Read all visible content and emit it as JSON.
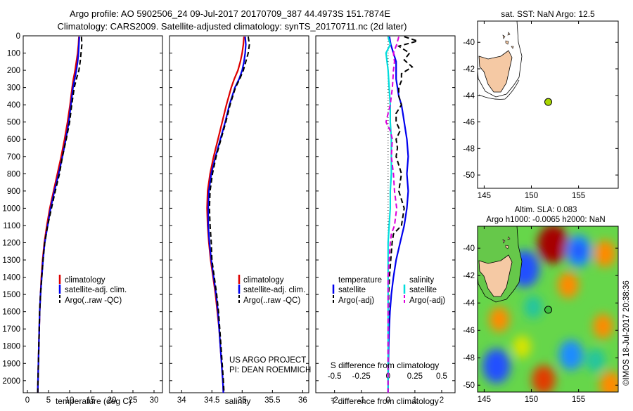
{
  "figure": {
    "title_line1": "Argo profile: AO 5902506_24 09-Jul-2017 20170709_387 44.4973S 151.7874E",
    "title_line2": "Climatology: CARS2009. Satellite-adjusted climatology: synTS_20170711.nc (2d later)",
    "timestamp": "©IMOS 18-Jul-2017 20:38:36",
    "project_line1": "US ARGO PROJECT",
    "project_line2": "PI: DEAN ROEMMICH"
  },
  "colors": {
    "climatology": "#dd0000",
    "satellite": "#0000ee",
    "argo": "#000000",
    "satellite_t": "#0000ee",
    "satellite_s": "#00dddd",
    "argo_t": "#000000",
    "argo_s": "#dd00dd",
    "land": "#f5c9a4",
    "float_marker": "#a8d600"
  },
  "chart_data": [
    {
      "type": "line",
      "id": "temperature",
      "xlabel": "temperature (deg C)",
      "ylabel": "",
      "xlim": [
        -1,
        32
      ],
      "ylim": [
        2070,
        0
      ],
      "xticks": [
        0,
        5,
        10,
        15,
        20,
        25,
        30
      ],
      "yticks": [
        0,
        100,
        200,
        300,
        400,
        500,
        600,
        700,
        800,
        900,
        1000,
        1100,
        1200,
        1300,
        1400,
        1500,
        1600,
        1700,
        1800,
        1900,
        2000
      ],
      "legend": [
        "climatology",
        "satellite-adj. clim.",
        "Argo(..raw -QC)"
      ],
      "series": [
        {
          "name": "climatology",
          "style": "solid",
          "depth": [
            5,
            50,
            100,
            150,
            200,
            250,
            300,
            400,
            500,
            600,
            700,
            800,
            900,
            1000,
            1100,
            1200,
            1300,
            1400,
            1500,
            1600,
            1700,
            1800,
            1900,
            2000,
            2070
          ],
          "values": [
            12.2,
            12.1,
            11.9,
            11.6,
            11.3,
            10.9,
            10.6,
            10.1,
            9.5,
            8.8,
            8.0,
            7.1,
            6.2,
            5.3,
            4.6,
            4.0,
            3.6,
            3.3,
            3.1,
            2.9,
            2.8,
            2.7,
            2.6,
            2.5,
            2.45
          ]
        },
        {
          "name": "satellite-adj. clim.",
          "style": "solid",
          "depth": [
            5,
            50,
            100,
            150,
            200,
            250,
            300,
            400,
            500,
            600,
            700,
            800,
            900,
            1000,
            1100,
            1200,
            1300,
            1400,
            1500,
            1600,
            1700,
            1800,
            1900,
            2000,
            2070
          ],
          "values": [
            12.3,
            12.2,
            12.1,
            11.9,
            11.6,
            11.2,
            10.8,
            10.3,
            9.8,
            9.1,
            8.3,
            7.4,
            6.4,
            5.5,
            4.8,
            4.1,
            3.7,
            3.4,
            3.1,
            2.9,
            2.8,
            2.7,
            2.6,
            2.5,
            2.45
          ]
        },
        {
          "name": "Argo(..raw -QC)",
          "style": "dashed",
          "depth": [
            5,
            50,
            100,
            150,
            200,
            250,
            300,
            400,
            500,
            600,
            700,
            800,
            900,
            1000,
            1100,
            1200,
            1300,
            1400,
            1500,
            1600,
            1700,
            1800,
            1900,
            2000,
            2070
          ],
          "values": [
            12.8,
            12.9,
            12.7,
            12.5,
            12.2,
            11.6,
            11.1,
            10.5,
            10.0,
            9.2,
            8.3,
            7.6,
            6.6,
            5.7,
            4.8,
            4.1,
            3.7,
            3.4,
            3.1,
            2.9,
            2.8,
            2.7,
            2.6,
            2.5,
            2.45
          ]
        }
      ]
    },
    {
      "type": "line",
      "id": "salinity",
      "xlabel": "salinity",
      "ylabel": "",
      "xlim": [
        33.8,
        36.1
      ],
      "ylim": [
        2070,
        0
      ],
      "xticks": [
        34,
        34.5,
        35,
        35.5,
        36
      ],
      "legend": [
        "climatology",
        "satellite-adj. clim.",
        "Argo(..raw -QC)"
      ],
      "series": [
        {
          "name": "climatology",
          "style": "solid",
          "depth": [
            5,
            50,
            100,
            150,
            200,
            250,
            300,
            400,
            500,
            600,
            700,
            800,
            900,
            1000,
            1100,
            1200,
            1300,
            1400,
            1500,
            1600,
            1700,
            1800,
            1900,
            2000,
            2070
          ],
          "values": [
            35.03,
            35.02,
            35.0,
            34.97,
            34.93,
            34.87,
            34.82,
            34.74,
            34.67,
            34.6,
            34.53,
            34.47,
            34.43,
            34.42,
            34.43,
            34.45,
            34.48,
            34.52,
            34.56,
            34.59,
            34.62,
            34.64,
            34.66,
            34.68,
            34.69
          ]
        },
        {
          "name": "satellite-adj. clim.",
          "style": "solid",
          "depth": [
            5,
            50,
            100,
            150,
            200,
            250,
            300,
            400,
            500,
            600,
            700,
            800,
            900,
            1000,
            1100,
            1200,
            1300,
            1400,
            1500,
            1600,
            1700,
            1800,
            1900,
            2000,
            2070
          ],
          "values": [
            35.05,
            35.06,
            35.05,
            35.03,
            35.0,
            34.95,
            34.88,
            34.79,
            34.72,
            34.64,
            34.56,
            34.49,
            34.45,
            34.44,
            34.44,
            34.46,
            34.49,
            34.53,
            34.57,
            34.6,
            34.62,
            34.64,
            34.66,
            34.68,
            34.69
          ]
        },
        {
          "name": "Argo(..raw -QC)",
          "style": "dashed",
          "depth": [
            5,
            50,
            100,
            150,
            200,
            250,
            300,
            400,
            500,
            600,
            700,
            800,
            900,
            1000,
            1100,
            1200,
            1300,
            1400,
            1500,
            1600,
            1700,
            1800,
            1900,
            2000,
            2070
          ],
          "values": [
            35.1,
            35.12,
            35.1,
            35.06,
            35.02,
            34.96,
            34.89,
            34.8,
            34.73,
            34.65,
            34.57,
            34.51,
            34.47,
            34.46,
            34.47,
            34.49,
            34.5,
            34.54,
            34.58,
            34.61,
            34.63,
            34.65,
            34.67,
            34.69,
            34.7
          ]
        }
      ]
    },
    {
      "type": "line",
      "id": "difference",
      "xlabel": "T difference from climatology",
      "xlabel_top": "S difference from climatology",
      "ylabel": "",
      "xlim": [
        -2.7,
        2.5
      ],
      "ylim": [
        2070,
        0
      ],
      "xticks_t": [
        -2,
        -1,
        0,
        1,
        2
      ],
      "xticks_s": [
        -0.5,
        -0.25,
        0,
        0.25,
        0.5
      ],
      "xtick_labels_s": [
        "-0.5",
        "-0.25",
        "0",
        "0.25",
        "0.5"
      ],
      "legend_headers": [
        "temperature",
        "salinity"
      ],
      "legend_t": [
        "satellite",
        "Argo(-adj)"
      ],
      "legend_s": [
        "satellite",
        "Argo(-adj)"
      ],
      "series": [
        {
          "name": "satellite",
          "group": "temperature",
          "style": "solid",
          "depth": [
            5,
            50,
            100,
            150,
            200,
            250,
            300,
            350,
            400,
            450,
            500,
            600,
            700,
            800,
            900,
            1000,
            1100,
            1200,
            1300,
            1400,
            1500,
            1600,
            1700,
            1800,
            1900,
            2000,
            2070
          ],
          "values": [
            0.05,
            0.1,
            0.2,
            0.3,
            0.3,
            0.3,
            0.35,
            0.4,
            0.5,
            0.55,
            0.6,
            0.7,
            0.75,
            0.7,
            0.75,
            0.7,
            0.6,
            0.45,
            0.3,
            0.2,
            0.12,
            0.07,
            0.04,
            0.02,
            0.01,
            0.0,
            0.0
          ]
        },
        {
          "name": "Argo(-adj)",
          "group": "temperature",
          "style": "dashed",
          "depth": [
            5,
            30,
            60,
            100,
            140,
            180,
            220,
            260,
            300,
            350,
            400,
            450,
            500,
            550,
            600,
            650,
            700,
            800,
            900,
            1000,
            1100,
            1150,
            1200,
            1300,
            1400,
            1500,
            1600,
            1700,
            1800,
            1900,
            2000,
            2070
          ],
          "values": [
            0.6,
            1.1,
            0.4,
            0.8,
            0.6,
            0.9,
            0.5,
            0.5,
            0.4,
            0.4,
            0.5,
            0.3,
            0.3,
            0.45,
            0.3,
            0.35,
            0.3,
            0.5,
            0.4,
            0.6,
            0.5,
            0.2,
            0.15,
            0.1,
            0.05,
            0.02,
            0.02,
            0.01,
            0.0,
            0.0,
            0.0,
            0.0
          ]
        },
        {
          "name": "satellite",
          "group": "salinity",
          "style": "solid",
          "depth": [
            5,
            50,
            100,
            200,
            300,
            400,
            500,
            600,
            700,
            800,
            900,
            1000,
            1100,
            1200,
            1400,
            1600,
            1800,
            2000,
            2070
          ],
          "values": [
            0.0,
            0.02,
            -0.02,
            0.0,
            0.01,
            0.02,
            0.02,
            0.03,
            0.03,
            0.03,
            0.02,
            0.02,
            0.01,
            0.0,
            0.0,
            0.0,
            0.0,
            0.0,
            0.0
          ]
        },
        {
          "name": "Argo(-adj)",
          "group": "salinity",
          "style": "dashed",
          "depth": [
            5,
            50,
            100,
            150,
            200,
            300,
            400,
            450,
            500,
            550,
            600,
            700,
            800,
            900,
            1000,
            1100,
            1150,
            1200,
            1300,
            1400,
            1600,
            1800,
            2000,
            2070
          ],
          "values": [
            0.1,
            0.08,
            0.05,
            0.06,
            0.05,
            0.04,
            0.02,
            0.0,
            -0.02,
            0.02,
            0.04,
            0.03,
            0.05,
            0.06,
            0.08,
            0.06,
            0.03,
            0.02,
            0.01,
            0.0,
            0.0,
            0.0,
            0.0,
            0.0
          ]
        }
      ]
    },
    {
      "type": "scatter",
      "id": "sst-map",
      "title": "sat. SST: NaN Argo: 12.5",
      "xlim": [
        144.3,
        159.2
      ],
      "ylim": [
        -51,
        -38.4
      ],
      "xticks": [
        145,
        150,
        155
      ],
      "yticks": [
        -40,
        -42,
        -44,
        -46,
        -48,
        -50
      ],
      "float_position": {
        "lon": 151.7874,
        "lat": -44.4973
      }
    },
    {
      "type": "heatmap",
      "id": "sla-map",
      "title_line1": "Altim. SLA: 0.083",
      "title_line2": "Argo h1000: -0.0065 h2000: NaN",
      "xlim": [
        144.3,
        159.2
      ],
      "ylim": [
        -50.5,
        -38.4
      ],
      "xticks": [
        145,
        150,
        155
      ],
      "yticks": [
        -40,
        -42,
        -44,
        -46,
        -48,
        -50
      ],
      "float_position": {
        "lon": 151.7874,
        "lat": -44.4973
      },
      "anomalies": [
        {
          "lon": 152.3,
          "lat": -39.7,
          "value": 1.0
        },
        {
          "lon": 155.0,
          "lat": -40.2,
          "value": -0.7
        },
        {
          "lon": 149.3,
          "lat": -41.5,
          "value": -0.9
        },
        {
          "lon": 157.8,
          "lat": -40.4,
          "value": 0.45
        },
        {
          "lon": 153.9,
          "lat": -42.7,
          "value": 0.4
        },
        {
          "lon": 146.3,
          "lat": -48.6,
          "value": -0.8
        },
        {
          "lon": 154.2,
          "lat": -47.8,
          "value": -0.6
        },
        {
          "lon": 151.3,
          "lat": -49.6,
          "value": 0.55
        },
        {
          "lon": 158.4,
          "lat": -50.0,
          "value": 0.5
        },
        {
          "lon": 157.6,
          "lat": -45.7,
          "value": 0.35
        },
        {
          "lon": 146.6,
          "lat": -45.2,
          "value": 0.35
        },
        {
          "lon": 150.2,
          "lat": -44.3,
          "value": -0.25
        },
        {
          "lon": 156.8,
          "lat": -48.2,
          "value": -0.3
        },
        {
          "lon": 149.0,
          "lat": -47.2,
          "value": 0.25
        }
      ]
    }
  ]
}
